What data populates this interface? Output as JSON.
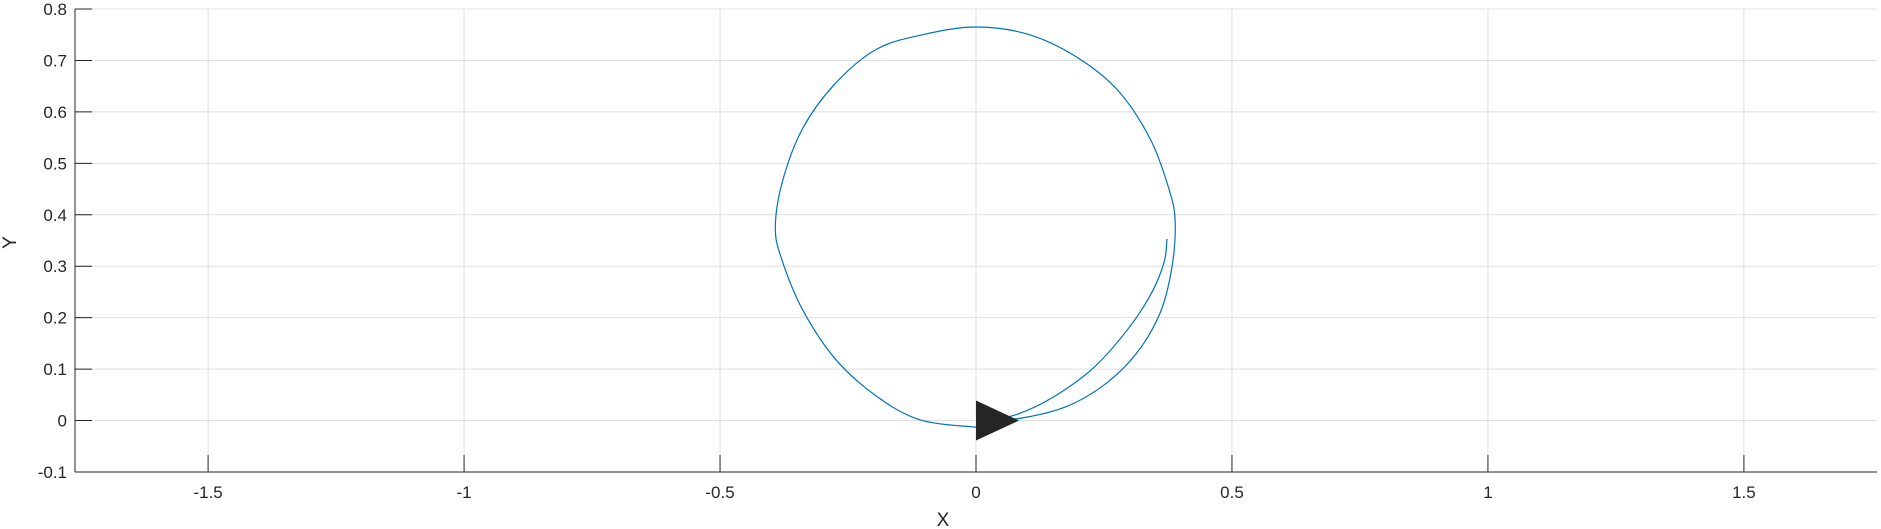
{
  "chart_data": {
    "type": "line",
    "title": "",
    "xlabel": "X",
    "ylabel": "Y",
    "xlim": [
      -1.76,
      1.76
    ],
    "ylim": [
      -0.1,
      0.8
    ],
    "xticks": [
      -1.5,
      -1,
      -0.5,
      0,
      0.5,
      1,
      1.5
    ],
    "xtick_labels": [
      "-1.5",
      "-1",
      "-0.5",
      "0",
      "0.5",
      "1",
      "1.5"
    ],
    "yticks": [
      -0.1,
      0,
      0.1,
      0.2,
      0.3,
      0.4,
      0.5,
      0.6,
      0.7,
      0.8
    ],
    "ytick_labels": [
      "-0.1",
      "0",
      "0.1",
      "0.2",
      "0.3",
      "0.4",
      "0.5",
      "0.6",
      "0.7",
      "0.8"
    ],
    "grid": true,
    "colors": {
      "line": "#0072BD",
      "marker": "#262626",
      "grid": "#dfdfdf",
      "axis": "#262626"
    },
    "series": [
      {
        "x": [
          0.0,
          -0.108,
          -0.194,
          -0.275,
          -0.339,
          -0.379,
          -0.392,
          -0.378,
          -0.339,
          -0.275,
          -0.194,
          -0.1,
          0.0,
          0.101,
          0.196,
          0.277,
          0.34,
          0.377,
          0.389,
          0.383,
          0.36,
          0.313,
          0.25,
          0.176,
          0.09,
          0.025
        ],
        "y": [
          -0.013,
          0.001,
          0.047,
          0.12,
          0.216,
          0.312,
          0.375,
          0.465,
          0.567,
          0.655,
          0.722,
          0.751,
          0.765,
          0.751,
          0.707,
          0.642,
          0.548,
          0.45,
          0.388,
          0.3,
          0.21,
          0.13,
          0.069,
          0.027,
          0.005,
          0.001
        ]
      },
      {
        "x": [
          0.025,
          0.08,
          0.15,
          0.23,
          0.3,
          0.345,
          0.368,
          0.373
        ],
        "y": [
          0.001,
          0.012,
          0.045,
          0.103,
          0.182,
          0.252,
          0.31,
          0.353
        ]
      }
    ],
    "marker": {
      "shape": "triangle-right",
      "x": 0.0,
      "y": 0.0
    }
  }
}
